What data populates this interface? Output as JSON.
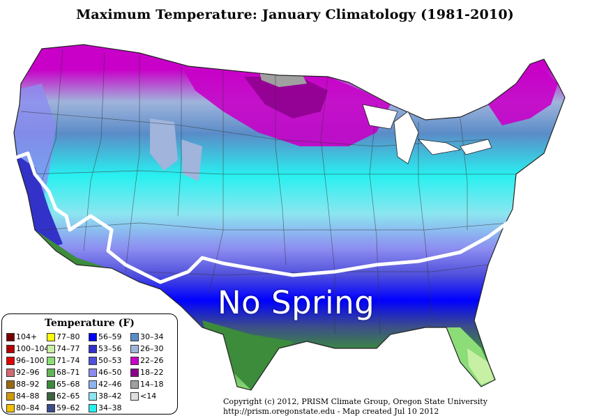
{
  "title": "Maximum Temperature:  January Climatology (1981-2010)",
  "overlay_label": "No Spring",
  "legend": {
    "title": "Temperature (F)",
    "columns": [
      [
        {
          "label": "104+",
          "color": "#7a0000"
        },
        {
          "label": "100–104",
          "color": "#b40000"
        },
        {
          "label": "96–100",
          "color": "#e00000"
        },
        {
          "label": "92–96",
          "color": "#d06a74"
        },
        {
          "label": "88–92",
          "color": "#9a6a12"
        },
        {
          "label": "84–88",
          "color": "#d09a0a"
        },
        {
          "label": "80–84",
          "color": "#f2c000"
        }
      ],
      [
        {
          "label": "77–80",
          "color": "#ffff00"
        },
        {
          "label": "74–77",
          "color": "#c8f0a4"
        },
        {
          "label": "71–74",
          "color": "#8cdc78"
        },
        {
          "label": "68–71",
          "color": "#64b45a"
        },
        {
          "label": "65–68",
          "color": "#3c8c3c"
        },
        {
          "label": "62–65",
          "color": "#3c6440"
        },
        {
          "label": "59–62",
          "color": "#3c4c8c"
        }
      ],
      [
        {
          "label": "56–59",
          "color": "#0000ff"
        },
        {
          "label": "53–56",
          "color": "#3232c8"
        },
        {
          "label": "50–53",
          "color": "#5050dc"
        },
        {
          "label": "46–50",
          "color": "#8c8cf0"
        },
        {
          "label": "42–46",
          "color": "#8cb4f0"
        },
        {
          "label": "38–42",
          "color": "#8ce6f0"
        },
        {
          "label": "34–38",
          "color": "#28f0f0"
        }
      ],
      [
        {
          "label": "30–34",
          "color": "#5a8cc8"
        },
        {
          "label": "26–30",
          "color": "#a0b4dc"
        },
        {
          "label": "22–26",
          "color": "#c800c8"
        },
        {
          "label": "18–22",
          "color": "#8c008c"
        },
        {
          "label": "14–18",
          "color": "#a0a0a0"
        },
        {
          "label": "<14",
          "color": "#e0e0e0"
        }
      ]
    ]
  },
  "copyright": {
    "line1": "Copyright (c) 2012, PRISM Climate Group, Oregon State University",
    "line2": "http://prism.oregonstate.edu  -  Map created Jul 10 2012"
  }
}
